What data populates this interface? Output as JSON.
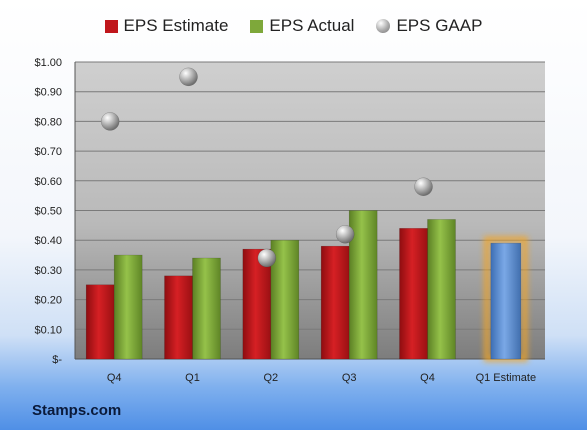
{
  "chart_data": {
    "type": "bar",
    "categories": [
      "Q4",
      "Q1",
      "Q2",
      "Q3",
      "Q4",
      "Q1 Estimate"
    ],
    "series": [
      {
        "name": "EPS Estimate",
        "values": [
          0.25,
          0.28,
          0.37,
          0.38,
          0.44,
          null
        ],
        "color": "#c0161b"
      },
      {
        "name": "EPS Actual",
        "values": [
          0.35,
          0.34,
          0.4,
          0.5,
          0.47,
          null
        ],
        "color": "#7ea83a"
      },
      {
        "name": "EPS GAAP",
        "type": "scatter",
        "values": [
          0.8,
          0.95,
          0.34,
          0.42,
          0.58,
          null
        ],
        "color": "#a6a6a6"
      }
    ],
    "estimate_bar": {
      "category": "Q1 Estimate",
      "value": 0.39,
      "color": "#5b8ed0",
      "glow": "#f5a623"
    },
    "y_ticks": [
      "$-",
      "$0.10",
      "$0.20",
      "$0.30",
      "$0.40",
      "$0.50",
      "$0.60",
      "$0.70",
      "$0.80",
      "$0.90",
      "$1.00"
    ],
    "ylim": [
      0,
      1.0
    ],
    "grid": true,
    "legend": "top"
  },
  "legend": {
    "estimate": "EPS Estimate",
    "actual": "EPS Actual",
    "gaap": "EPS GAAP"
  },
  "brand": "Stamps.com"
}
